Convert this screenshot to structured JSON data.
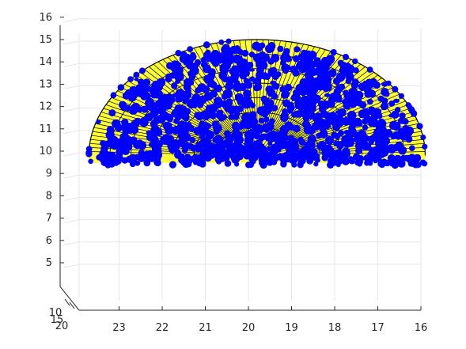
{
  "chart_data": {
    "type": "scatter",
    "title": "",
    "xlabel": "",
    "ylabel": "",
    "zlabel": "",
    "view": "3-D view, x axis reversed, z vertical",
    "xlim": [
      16,
      23.5
    ],
    "ylim": [
      10,
      20
    ],
    "zlim": [
      4,
      16
    ],
    "x_ticks": [
      "23",
      "22",
      "21",
      "20",
      "19",
      "18",
      "17",
      "16"
    ],
    "y_ticks": [
      "10",
      "15",
      "20"
    ],
    "z_ticks": [
      "5",
      "6",
      "7",
      "8",
      "9",
      "10",
      "11",
      "12",
      "13",
      "14",
      "15",
      "16"
    ],
    "grid": true,
    "legend": "none",
    "surfaces": [
      {
        "shape": "half-dome (hemisphere)",
        "center_x": 19.8,
        "base_z": 9.8,
        "radius_x": 3.9,
        "top_z": 15.0,
        "color": "#ffff33",
        "edge_color": "#000000"
      },
      {
        "shape": "small half-dome (hemisphere)",
        "center_x": 19.8,
        "base_z": 9.8,
        "radius_x": 0.85,
        "top_z": 10.9,
        "color": "#ffff33",
        "edge_color": "#000000"
      }
    ],
    "series": [
      {
        "marker": "filled circle",
        "color": "#0000ff",
        "approx_count": 1000,
        "distribution": "dense cloud filling the lower half-ellipse (z about 4.7 to 9.8, x about 16.6 to 23.1), sparse points on the outer dome surface and a cluster around the small dome"
      }
    ]
  }
}
